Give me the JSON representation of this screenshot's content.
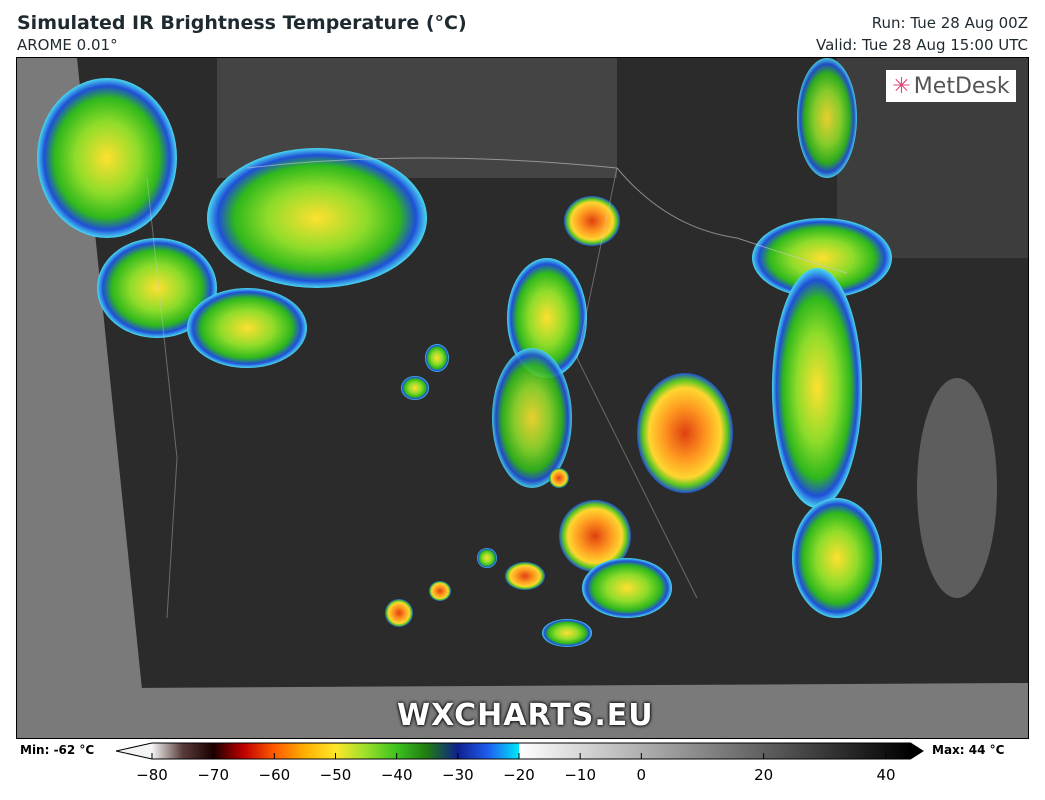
{
  "header": {
    "title": "Simulated IR Brightness Temperature (°C)",
    "model": "AROME 0.01°",
    "run": "Run: Tue 28 Aug 00Z",
    "valid": "Valid: Tue 28 Aug 15:00 UTC"
  },
  "map": {
    "logo": "MetDesk",
    "watermark": "WXCHARTS.EU",
    "logo_icon": "metdesk-star-icon"
  },
  "colorbar": {
    "min_label": "Min: -62 °C",
    "max_label": "Max: 44 °C",
    "ticks": [
      "−80",
      "−70",
      "−60",
      "−50",
      "−40",
      "−30",
      "−20",
      "−10",
      "0",
      "20",
      "40"
    ],
    "tick_values": [
      -80,
      -70,
      -60,
      -50,
      -40,
      -30,
      -20,
      -10,
      0,
      20,
      40
    ],
    "range": [
      -80,
      44
    ],
    "colors": [
      "#f4f4f4",
      "#5a3b3b",
      "#1a0000",
      "#c00000",
      "#ff5a00",
      "#ffb000",
      "#ffe62a",
      "#9be02a",
      "#3cc21e",
      "#1f7a12",
      "#10208f",
      "#1f5ef0",
      "#00e8f8",
      "#ffffff",
      "#000000"
    ]
  }
}
